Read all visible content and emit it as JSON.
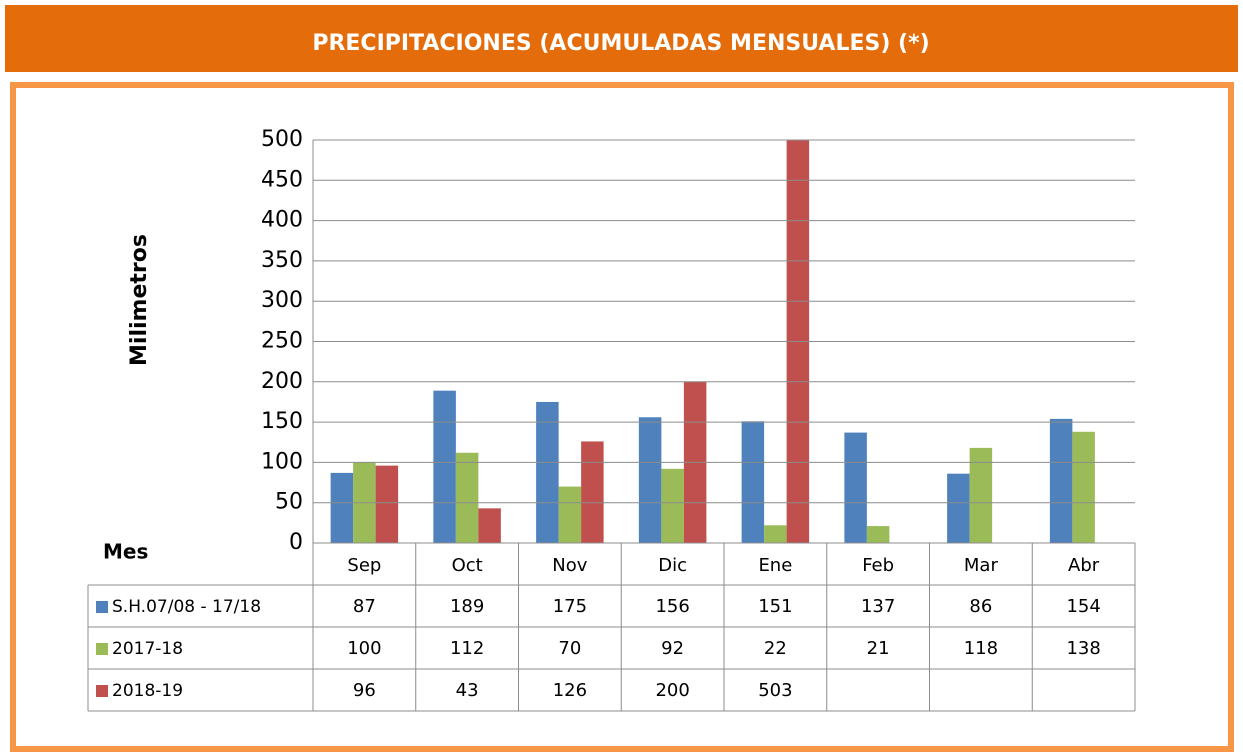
{
  "chart_data": {
    "type": "bar",
    "title": "PRECIPITACIONES (ACUMULADAS MENSUALES) (*)",
    "y_label": "Milimetros",
    "x_label": "Mes",
    "categories": [
      "Sep",
      "Oct",
      "Nov",
      "Dic",
      "Ene",
      "Feb",
      "Mar",
      "Abr"
    ],
    "series": [
      {
        "name": "S.H.07/08 - 17/18",
        "color": "#4f81bd",
        "values": [
          87,
          189,
          175,
          156,
          151,
          137,
          86,
          154
        ]
      },
      {
        "name": "2017-18",
        "color": "#9bbb59",
        "values": [
          100,
          112,
          70,
          92,
          22,
          21,
          118,
          138
        ]
      },
      {
        "name": "2018-19",
        "color": "#c0504d",
        "values": [
          96,
          43,
          126,
          200,
          503,
          null,
          null,
          null
        ]
      }
    ],
    "ylim": [
      0,
      500
    ],
    "yticks": [
      0,
      50,
      100,
      150,
      200,
      250,
      300,
      350,
      400,
      450,
      500
    ],
    "grid": true
  }
}
